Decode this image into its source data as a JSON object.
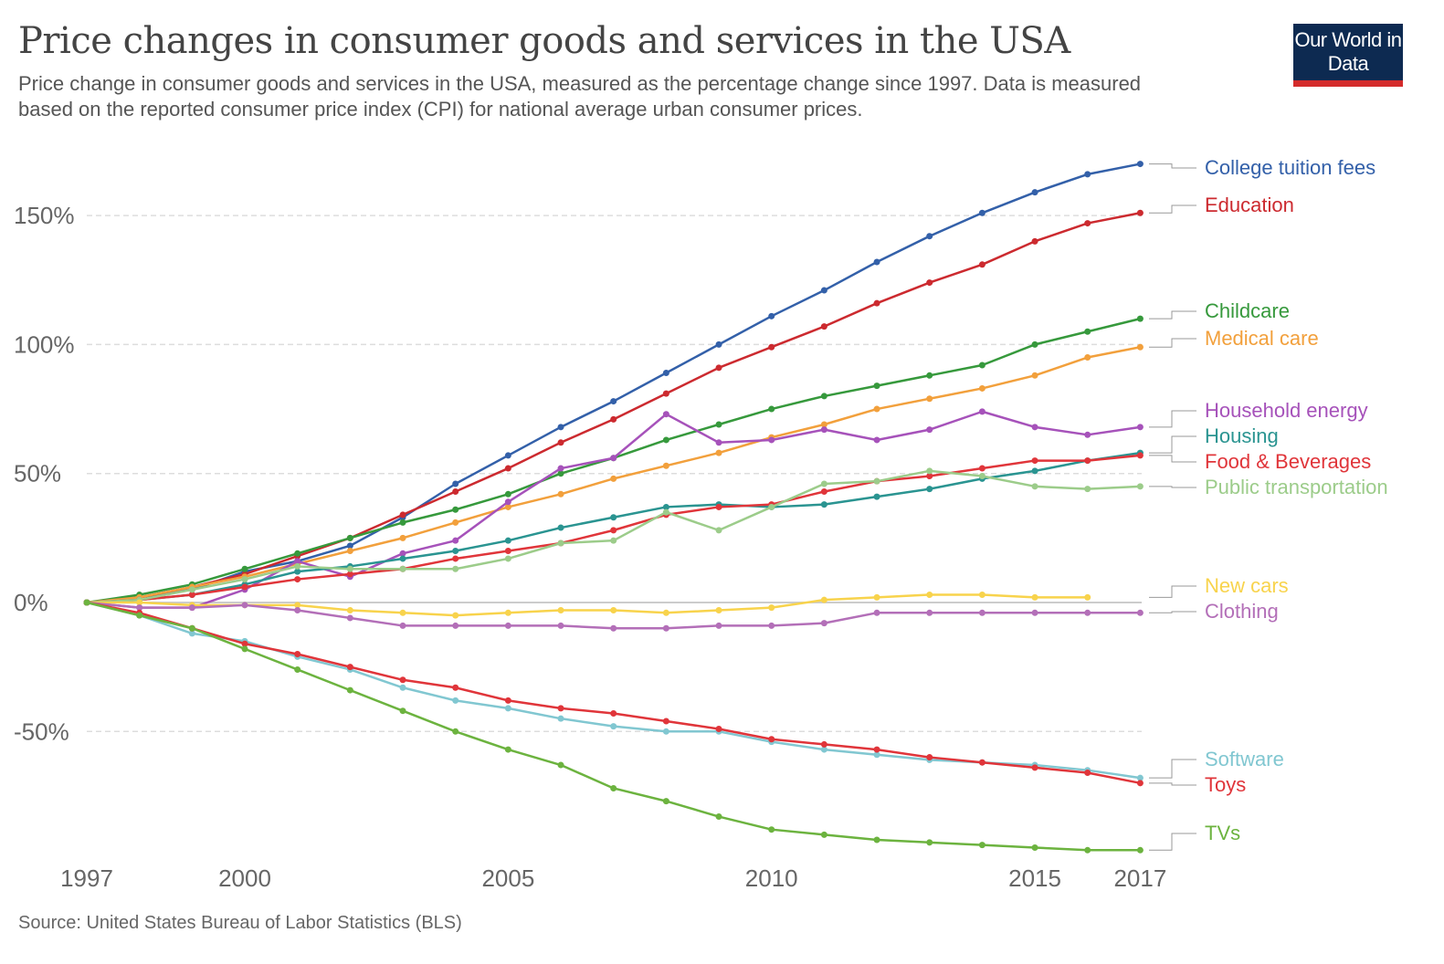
{
  "header": {
    "title": "Price changes in consumer goods and services in the USA",
    "subtitle": "Price change in consumer goods and services in the USA, measured as the percentage change since 1997. Data is measured based on the reported consumer price index (CPI) for national average urban consumer prices.",
    "logo": "Our World in Data"
  },
  "footer": {
    "source": "Source: United States Bureau of Labor Statistics (BLS)"
  },
  "chart_data": {
    "type": "line",
    "title": "Price changes in consumer goods and services in the USA",
    "x": [
      1997,
      1998,
      1999,
      2000,
      2001,
      2002,
      2003,
      2004,
      2005,
      2006,
      2007,
      2008,
      2009,
      2010,
      2011,
      2012,
      2013,
      2014,
      2015,
      2016,
      2017
    ],
    "xticks": [
      "1997",
      "2000",
      "2005",
      "2010",
      "2015",
      "2017"
    ],
    "yticks": [
      "-50%",
      "0%",
      "50%",
      "100%",
      "150%"
    ],
    "ylim": [
      -100,
      170
    ],
    "grid": "horizontal dashed",
    "legend": "right, labels at line ends",
    "series": [
      {
        "name": "College tuition fees",
        "color": "#3360a9",
        "values": [
          0,
          2,
          5,
          12,
          16,
          22,
          33,
          46,
          57,
          68,
          78,
          89,
          100,
          111,
          121,
          132,
          142,
          151,
          159,
          166,
          170
        ]
      },
      {
        "name": "Education",
        "color": "#cc2a2f",
        "values": [
          0,
          2,
          6,
          11,
          18,
          25,
          34,
          43,
          52,
          62,
          71,
          81,
          91,
          99,
          107,
          116,
          124,
          131,
          140,
          147,
          151
        ]
      },
      {
        "name": "Childcare",
        "color": "#36993c",
        "values": [
          0,
          3,
          7,
          13,
          19,
          25,
          31,
          36,
          42,
          50,
          56,
          63,
          69,
          75,
          80,
          84,
          88,
          92,
          100,
          105,
          110
        ]
      },
      {
        "name": "Medical care",
        "color": "#f2a03c",
        "values": [
          0,
          2,
          6,
          10,
          15,
          20,
          25,
          31,
          37,
          42,
          48,
          53,
          58,
          64,
          69,
          75,
          79,
          83,
          88,
          95,
          99
        ]
      },
      {
        "name": "Household energy",
        "color": "#a652ba",
        "values": [
          0,
          -2,
          -2,
          5,
          16,
          10,
          19,
          24,
          39,
          52,
          56,
          73,
          62,
          63,
          67,
          63,
          67,
          74,
          68,
          65,
          68
        ]
      },
      {
        "name": "Housing",
        "color": "#2a9491",
        "values": [
          0,
          1,
          3,
          7,
          12,
          14,
          17,
          20,
          24,
          29,
          33,
          37,
          38,
          37,
          38,
          41,
          44,
          48,
          51,
          55,
          58
        ]
      },
      {
        "name": "Food & Beverages",
        "color": "#e0353a",
        "values": [
          0,
          1,
          3,
          6,
          9,
          11,
          13,
          17,
          20,
          23,
          28,
          34,
          37,
          38,
          43,
          47,
          49,
          52,
          55,
          55,
          57
        ]
      },
      {
        "name": "Public transportation",
        "color": "#9ccc8a",
        "values": [
          0,
          1,
          5,
          9,
          14,
          13,
          13,
          13,
          17,
          23,
          24,
          35,
          28,
          37,
          46,
          47,
          51,
          49,
          45,
          44,
          45
        ]
      },
      {
        "name": "New cars",
        "color": "#f8d34c",
        "values": [
          0,
          0,
          -1,
          -1,
          -1,
          -3,
          -4,
          -5,
          -4,
          -3,
          -3,
          -4,
          -3,
          -2,
          1,
          2,
          3,
          3,
          2,
          2,
          null
        ]
      },
      {
        "name": "Clothing",
        "color": "#b36fb8",
        "values": [
          0,
          -2,
          -2,
          -1,
          -3,
          -6,
          -9,
          -9,
          -9,
          -9,
          -10,
          -10,
          -9,
          -9,
          -8,
          -4,
          -4,
          -4,
          -4,
          -4,
          -4
        ]
      },
      {
        "name": "Software",
        "color": "#81c7d1",
        "values": [
          0,
          -5,
          -12,
          -15,
          -21,
          -26,
          -33,
          -38,
          -41,
          -45,
          -48,
          -50,
          -50,
          -54,
          -57,
          -59,
          -61,
          -62,
          -63,
          -65,
          -68
        ]
      },
      {
        "name": "Toys",
        "color": "#e0353a",
        "values": [
          0,
          -4,
          -10,
          -16,
          -20,
          -25,
          -30,
          -33,
          -38,
          -41,
          -43,
          -46,
          -49,
          -53,
          -55,
          -57,
          -60,
          -62,
          -64,
          -66,
          -70
        ]
      },
      {
        "name": "TVs",
        "color": "#6cb33f",
        "values": [
          0,
          -5,
          -10,
          -18,
          -26,
          -34,
          -42,
          -50,
          -57,
          -63,
          -72,
          -77,
          -83,
          -88,
          -90,
          -92,
          -93,
          -94,
          -95,
          -96,
          -96
        ]
      }
    ]
  }
}
